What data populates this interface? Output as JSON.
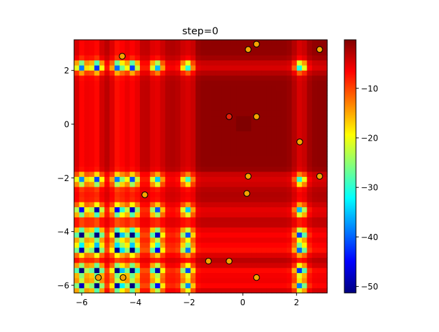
{
  "chart_data": {
    "type": "heatmap",
    "title": "step=0",
    "xlabel": "",
    "ylabel": "",
    "xlim": [
      -6.283,
      3.1416
    ],
    "ylim": [
      -6.283,
      3.1416
    ],
    "xticks": [
      "−6",
      "−4",
      "−2",
      "0",
      "2"
    ],
    "xtick_values": [
      -6,
      -4,
      -2,
      0,
      2
    ],
    "yticks": [
      "−6",
      "−4",
      "−2",
      "0",
      "2"
    ],
    "ytick_values": [
      -6,
      -4,
      -2,
      0,
      2
    ],
    "colormap": "jet",
    "colorbar": {
      "range": [
        -51.3,
        -0.2
      ],
      "ticks": [
        "−50",
        "−40",
        "−30",
        "−20",
        "−10"
      ],
      "tick_values": [
        -50,
        -40,
        -30,
        -20,
        -10
      ]
    },
    "scatter": {
      "edgecolor": "#000000",
      "points": [
        {
          "x": 0.51,
          "y": 2.98,
          "color": "#f5a300"
        },
        {
          "x": 0.2,
          "y": 2.78,
          "color": "#f5a300"
        },
        {
          "x": 2.86,
          "y": 2.78,
          "color": "#f5a300"
        },
        {
          "x": -4.49,
          "y": 2.53,
          "color": "#f5a300"
        },
        {
          "x": -0.51,
          "y": 0.28,
          "color": "#e8200a"
        },
        {
          "x": 0.51,
          "y": 0.28,
          "color": "#f5a300"
        },
        {
          "x": 2.12,
          "y": -0.66,
          "color": "#f5a300"
        },
        {
          "x": 0.2,
          "y": -1.94,
          "color": "#f5a300"
        },
        {
          "x": 2.86,
          "y": -1.94,
          "color": "#f5a300"
        },
        {
          "x": 0.15,
          "y": -2.58,
          "color": "#f5a300"
        },
        {
          "x": -3.65,
          "y": -2.63,
          "color": "#f5a300"
        },
        {
          "x": -1.28,
          "y": -5.1,
          "color": "#f5a300"
        },
        {
          "x": -0.51,
          "y": -5.1,
          "color": "#f5a300"
        },
        {
          "x": -5.38,
          "y": -5.71,
          "color": "#f5a300"
        },
        {
          "x": -4.46,
          "y": -5.71,
          "color": "#f5a300"
        },
        {
          "x": 0.51,
          "y": -5.71,
          "color": "#f5a300"
        }
      ]
    }
  }
}
